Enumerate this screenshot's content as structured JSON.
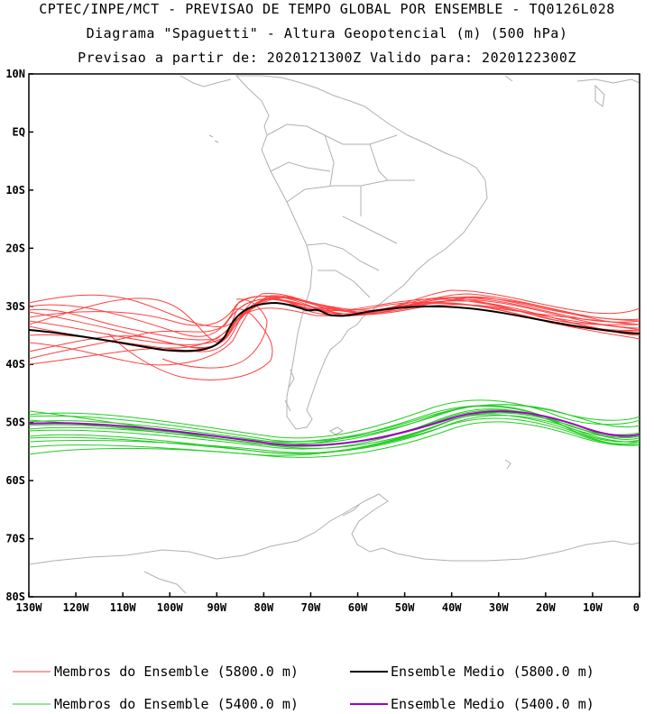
{
  "header": {
    "line1": "CPTEC/INPE/MCT - PREVISAO DE TEMPO GLOBAL POR ENSEMBLE - TQ0126L028",
    "line2": "Diagrama \"Spaguetti\" - Altura Geopotencial (m) (500 hPa)",
    "line3": "Previsao a partir de: 2020121300Z  Valido para: 2020122300Z"
  },
  "axes": {
    "lat_labels": [
      "10N",
      "EQ",
      "10S",
      "20S",
      "30S",
      "40S",
      "50S",
      "60S",
      "70S",
      "80S"
    ],
    "lon_labels": [
      "130W",
      "120W",
      "110W",
      "100W",
      "90W",
      "80W",
      "70W",
      "60W",
      "50W",
      "40W",
      "30W",
      "20W",
      "10W",
      "0"
    ]
  },
  "legend": [
    {
      "label": "Membros do Ensemble (5800.0 m)",
      "color": "#ff4040"
    },
    {
      "label": "Ensemble Medio (5800.0 m)",
      "color": "#000000"
    },
    {
      "label": "Membros do Ensemble (5400.0 m)",
      "color": "#22cc22"
    },
    {
      "label": "Ensemble Medio (5400.0 m)",
      "color": "#a000c0"
    }
  ],
  "colors": {
    "members_5800": "#ff4040",
    "mean_5800": "#000000",
    "members_5400": "#22cc22",
    "mean_5400": "#a000c0",
    "coastline": "#b0b0b0"
  }
}
